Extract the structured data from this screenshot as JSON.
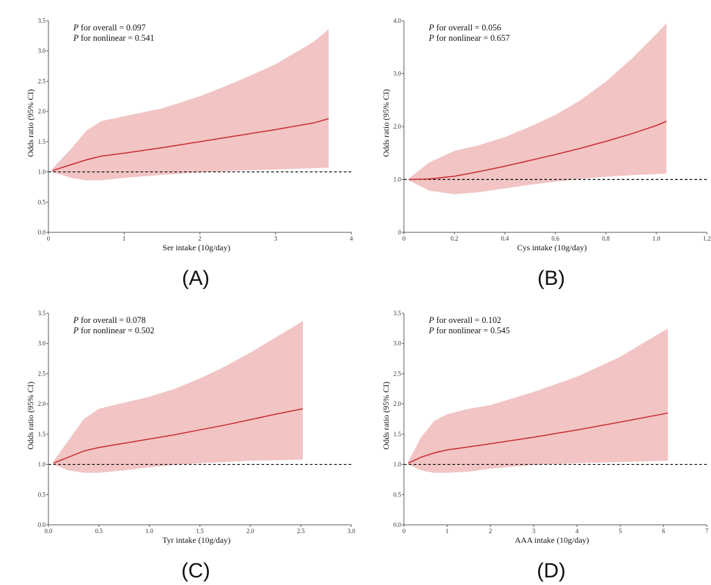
{
  "colors": {
    "band": "#f2c4c4",
    "line": "#c8282d",
    "ref_line": "#000000",
    "axis": "#555555"
  },
  "chart_data": [
    {
      "type": "line",
      "panel_label": "(A)",
      "xlabel": "Ser intake (10g/day)",
      "ylabel": "Odds ratio (95% CI)",
      "xlim": [
        0,
        4
      ],
      "ylim": [
        0,
        3.5
      ],
      "xticks": [
        0,
        1,
        2,
        3,
        4
      ],
      "yticks": [
        0.0,
        0.5,
        1.0,
        1.5,
        2.0,
        2.5,
        3.0,
        3.5
      ],
      "xtick_labels": [
        "0",
        "1",
        "2",
        "3",
        "4"
      ],
      "ytick_labels": [
        "0.0",
        "0.5",
        "1.0",
        "1.5",
        "2.0",
        "2.5",
        "3.0",
        "3.5"
      ],
      "reference_line": 1.0,
      "stats": [
        {
          "label": "P",
          "text": " for overall = 0.097"
        },
        {
          "label": "P",
          "text": " for nonlinear = 0.541"
        }
      ],
      "series": [
        {
          "x": [
            0.05,
            0.3,
            0.5,
            0.7,
            1.0,
            1.5,
            2.0,
            2.5,
            3.0,
            3.5,
            3.7
          ],
          "y": [
            1.02,
            1.12,
            1.2,
            1.26,
            1.31,
            1.4,
            1.5,
            1.6,
            1.7,
            1.81,
            1.88
          ],
          "lower": [
            1.0,
            0.9,
            0.86,
            0.86,
            0.9,
            0.95,
            0.99,
            1.02,
            1.04,
            1.06,
            1.07
          ],
          "upper": [
            1.05,
            1.38,
            1.68,
            1.84,
            1.92,
            2.05,
            2.25,
            2.5,
            2.78,
            3.15,
            3.36
          ]
        }
      ]
    },
    {
      "type": "line",
      "panel_label": "(B)",
      "xlabel": "Cys intake (10g/day)",
      "ylabel": "Odds ratio (95% CI)",
      "xlim": [
        0,
        1.2
      ],
      "ylim": [
        0,
        4.0
      ],
      "xticks": [
        0,
        0.2,
        0.4,
        0.6,
        0.8,
        1.0,
        1.2
      ],
      "yticks": [
        0,
        1.0,
        2.0,
        3.0,
        4.0
      ],
      "xtick_labels": [
        "0",
        "0.2",
        "0.4",
        "0.6",
        "0.8",
        "1.0",
        "1.2"
      ],
      "ytick_labels": [
        "0",
        "1.0",
        "2.0",
        "3.0",
        "4.0"
      ],
      "reference_line": 1.0,
      "stats": [
        {
          "label": "P",
          "text": " for overall = 0.056"
        },
        {
          "label": "P",
          "text": " for nonlinear = 0.657"
        }
      ],
      "series": [
        {
          "x": [
            0.02,
            0.1,
            0.2,
            0.3,
            0.4,
            0.5,
            0.6,
            0.7,
            0.8,
            0.9,
            1.0,
            1.04
          ],
          "y": [
            1.0,
            1.01,
            1.06,
            1.15,
            1.25,
            1.36,
            1.47,
            1.59,
            1.72,
            1.86,
            2.02,
            2.1
          ],
          "lower": [
            0.98,
            0.79,
            0.72,
            0.76,
            0.83,
            0.9,
            0.96,
            1.01,
            1.05,
            1.08,
            1.1,
            1.11
          ],
          "upper": [
            1.02,
            1.32,
            1.54,
            1.65,
            1.8,
            2.0,
            2.22,
            2.5,
            2.85,
            3.27,
            3.75,
            3.95
          ]
        }
      ]
    },
    {
      "type": "line",
      "panel_label": "(C)",
      "xlabel": "Tyr intake (10g/day)",
      "ylabel": "Odds ratio (95% CI)",
      "xlim": [
        0,
        3.0
      ],
      "ylim": [
        0,
        3.5
      ],
      "xticks": [
        0,
        0.5,
        1.0,
        1.5,
        2.0,
        2.5,
        3.0
      ],
      "yticks": [
        0.0,
        0.5,
        1.0,
        1.5,
        2.0,
        2.5,
        3.0,
        3.5
      ],
      "xtick_labels": [
        "0.0",
        "0.5",
        "1.0",
        "1.5",
        "2.0",
        "2.5",
        "3.0"
      ],
      "ytick_labels": [
        "0.0",
        "0.5",
        "1.0",
        "1.5",
        "2.0",
        "2.5",
        "3.0",
        "3.5"
      ],
      "reference_line": 1.0,
      "stats": [
        {
          "label": "P",
          "text": " for overall = 0.078"
        },
        {
          "label": "P",
          "text": " for nonlinear = 0.502"
        }
      ],
      "series": [
        {
          "x": [
            0.05,
            0.2,
            0.35,
            0.5,
            0.75,
            1.0,
            1.25,
            1.5,
            1.75,
            2.0,
            2.25,
            2.52
          ],
          "y": [
            1.02,
            1.12,
            1.22,
            1.28,
            1.35,
            1.42,
            1.49,
            1.57,
            1.65,
            1.74,
            1.83,
            1.92
          ],
          "lower": [
            1.0,
            0.9,
            0.86,
            0.86,
            0.9,
            0.95,
            0.99,
            1.02,
            1.04,
            1.06,
            1.07,
            1.08
          ],
          "upper": [
            1.05,
            1.4,
            1.75,
            1.92,
            2.02,
            2.12,
            2.25,
            2.42,
            2.62,
            2.85,
            3.1,
            3.37
          ]
        }
      ]
    },
    {
      "type": "line",
      "panel_label": "(D)",
      "xlabel": "AAA intake (10g/day)",
      "ylabel": "Odds ratio (95% CI)",
      "xlim": [
        0,
        7
      ],
      "ylim": [
        0,
        3.5
      ],
      "xticks": [
        0,
        1,
        2,
        3,
        4,
        5,
        6,
        7
      ],
      "yticks": [
        0.0,
        0.5,
        1.0,
        1.5,
        2.0,
        2.5,
        3.0,
        3.5
      ],
      "xtick_labels": [
        "0",
        "1",
        "2",
        "3",
        "4",
        "5",
        "6",
        "7"
      ],
      "ytick_labels": [
        "0.0",
        "0.5",
        "1.0",
        "1.5",
        "2.0",
        "2.5",
        "3.0",
        "3.5"
      ],
      "reference_line": 1.0,
      "stats": [
        {
          "label": "P",
          "text": "  for overall = 0.102"
        },
        {
          "label": "P",
          "text": "  for nonlinear = 0.545"
        }
      ],
      "series": [
        {
          "x": [
            0.1,
            0.4,
            0.7,
            1.0,
            1.5,
            2.0,
            3.0,
            4.0,
            5.0,
            6.1
          ],
          "y": [
            1.02,
            1.12,
            1.19,
            1.24,
            1.29,
            1.34,
            1.45,
            1.57,
            1.7,
            1.85
          ],
          "lower": [
            1.0,
            0.9,
            0.86,
            0.86,
            0.88,
            0.93,
            0.99,
            1.02,
            1.04,
            1.06
          ],
          "upper": [
            1.05,
            1.45,
            1.72,
            1.83,
            1.92,
            1.98,
            2.2,
            2.45,
            2.78,
            3.25
          ]
        }
      ]
    }
  ]
}
